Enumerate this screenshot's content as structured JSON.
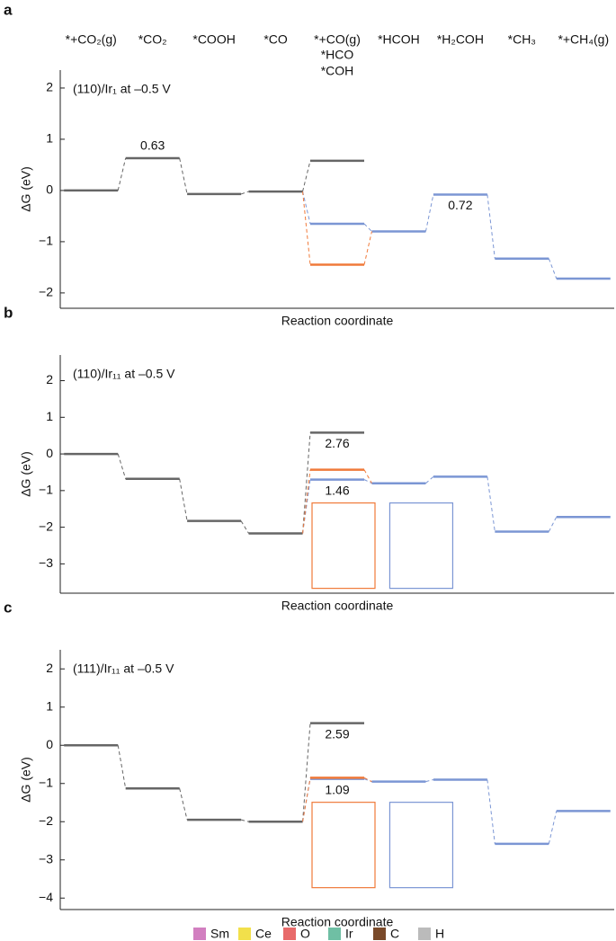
{
  "chart_data": [
    {
      "type": "step",
      "panel": "a",
      "annotation": "(110)/Ir₁ at –0.5 V",
      "ylabel": "ΔG (eV)",
      "xlabel": "Reaction coordinate",
      "categories": [
        "*+CO₂(g)",
        "*CO₂",
        "*COOH",
        "*CO",
        "*+CO(g)",
        "*HCOH",
        "*H₂COH",
        "*CH₃",
        "*+CH₄(g)"
      ],
      "ylim": [
        -2.3,
        2.35
      ],
      "yticks": [
        2,
        1,
        0,
        {
          "value": -1,
          "label": "−1"
        },
        {
          "value": -2,
          "label": "−2"
        }
      ],
      "series": [
        {
          "color": "#666666",
          "values": [
            0,
            0.63,
            -0.07,
            -0.02,
            0.58,
            null,
            null,
            null,
            null
          ]
        },
        {
          "name": "*HCO",
          "color": "#7b96d4",
          "values": [
            null,
            null,
            null,
            null,
            -0.65,
            -0.8,
            -0.08,
            -1.33,
            -1.72
          ]
        },
        {
          "name": "*COH",
          "color": "#f07a3a",
          "values": [
            null,
            null,
            null,
            null,
            -1.45,
            null,
            null,
            null,
            null
          ]
        }
      ],
      "annotations": [
        {
          "text": "0.63",
          "series": 0,
          "index": 1
        },
        {
          "text": "0.72",
          "series": 1,
          "index": 6
        }
      ]
    },
    {
      "type": "step",
      "panel": "b",
      "annotation": "(110)/Ir₁₁ at –0.5 V",
      "ylabel": "ΔG (eV)",
      "xlabel": "Reaction coordinate",
      "ylim": [
        -3.8,
        2.7
      ],
      "yticks": [
        2,
        1,
        0,
        {
          "value": -1,
          "label": "−1"
        },
        {
          "value": -2,
          "label": "−2"
        },
        {
          "value": -3,
          "label": "−3"
        }
      ],
      "series": [
        {
          "color": "#666666",
          "values": [
            0,
            -0.68,
            -1.83,
            -2.17,
            0.58,
            null,
            null,
            null,
            null
          ]
        },
        {
          "color": "#7b96d4",
          "values": [
            null,
            null,
            null,
            null,
            -0.7,
            -0.8,
            -0.62,
            -2.12,
            -1.72
          ]
        },
        {
          "color": "#f07a3a",
          "values": [
            null,
            null,
            null,
            null,
            -0.43,
            null,
            null,
            null,
            null
          ]
        }
      ],
      "annotations": [
        {
          "text": "2.76",
          "series": 0,
          "index": 4
        },
        {
          "text": "1.46",
          "series": 1,
          "index": 4
        }
      ]
    },
    {
      "type": "step",
      "panel": "c",
      "annotation": "(111)/Ir₁₁ at –0.5 V",
      "ylabel": "ΔG (eV)",
      "xlabel": "Reaction coordinate",
      "ylim": [
        -4.3,
        2.5
      ],
      "yticks": [
        2,
        1,
        0,
        {
          "value": -1,
          "label": "−1"
        },
        {
          "value": -2,
          "label": "−2"
        },
        {
          "value": -3,
          "label": "−3"
        },
        {
          "value": -4,
          "label": "−4"
        }
      ],
      "series": [
        {
          "color": "#666666",
          "values": [
            0,
            -1.13,
            -1.95,
            -2.0,
            0.58,
            null,
            null,
            null,
            null
          ]
        },
        {
          "color": "#7b96d4",
          "values": [
            null,
            null,
            null,
            null,
            -0.88,
            -0.95,
            -0.9,
            -2.58,
            -1.72
          ]
        },
        {
          "color": "#f07a3a",
          "values": [
            null,
            null,
            null,
            null,
            -0.85,
            null,
            null,
            null,
            null
          ]
        }
      ],
      "annotations": [
        {
          "text": "2.59",
          "series": 0,
          "index": 4
        },
        {
          "text": "1.09",
          "series": 1,
          "index": 4
        }
      ]
    }
  ],
  "legend": [
    {
      "label": "Sm",
      "color": "#d27fc0"
    },
    {
      "label": "Ce",
      "color": "#f2e04b"
    },
    {
      "label": "O",
      "color": "#e86a6a"
    },
    {
      "label": "Ir",
      "color": "#6fbfa4"
    },
    {
      "label": "C",
      "color": "#7a4a2a"
    },
    {
      "label": "H",
      "color": "#bbbbbb"
    }
  ]
}
